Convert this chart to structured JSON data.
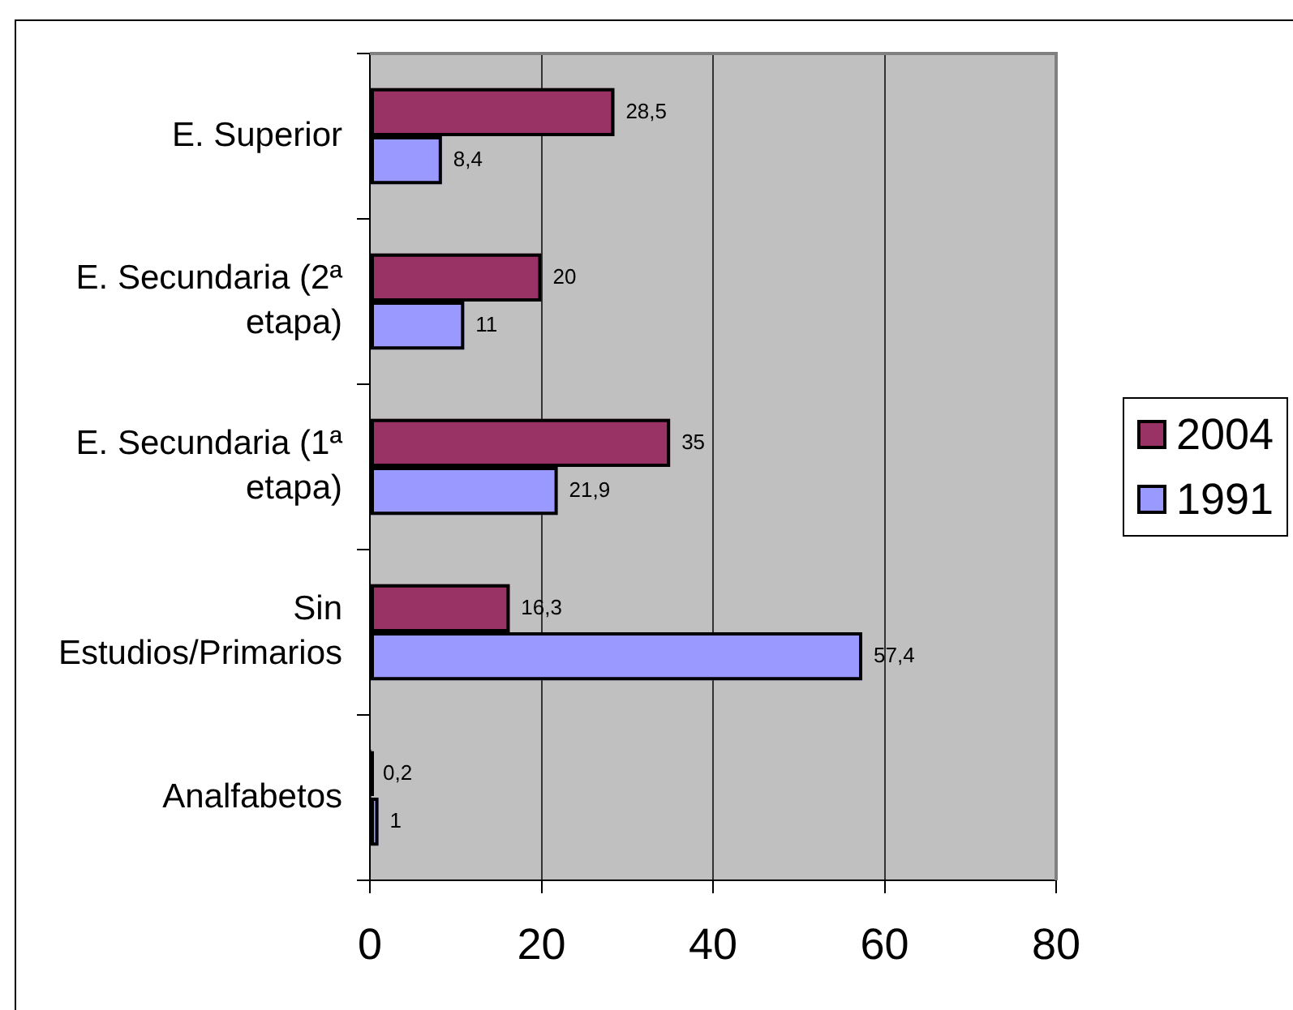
{
  "chart_data": {
    "type": "bar",
    "orientation": "horizontal",
    "categories": [
      "E. Superior",
      "E. Secundaria (2ª etapa)",
      "E. Secundaria (1ª etapa)",
      "Sin Estudios/Primarios",
      "Analfabetos"
    ],
    "series": [
      {
        "name": "2004",
        "color": "#993366",
        "values": [
          28.5,
          20,
          35,
          16.3,
          0.2
        ],
        "value_labels": [
          "28,5",
          "20",
          "35",
          "16,3",
          "0,2"
        ]
      },
      {
        "name": "1991",
        "color": "#9999ff",
        "values": [
          8.4,
          11,
          21.9,
          57.4,
          1
        ],
        "value_labels": [
          "8,4",
          "11",
          "21,9",
          "57,4",
          "1"
        ]
      }
    ],
    "xlim": [
      0,
      80
    ],
    "xticks": [
      0,
      20,
      40,
      60,
      80
    ],
    "grid": "x",
    "legend": "right"
  }
}
